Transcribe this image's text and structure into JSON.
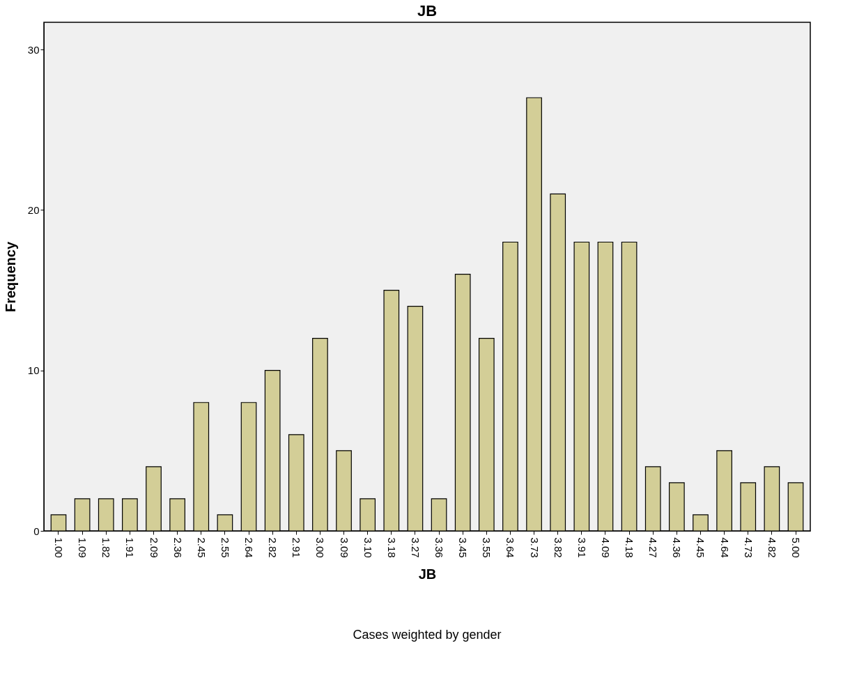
{
  "chart_data": {
    "type": "bar",
    "title": "JB",
    "xlabel": "JB",
    "ylabel": "Frequency",
    "categories": [
      "1.00",
      "1.09",
      "1.82",
      "1.91",
      "2.09",
      "2.36",
      "2.45",
      "2.55",
      "2.64",
      "2.82",
      "2.91",
      "3.00",
      "3.09",
      "3.10",
      "3.18",
      "3.27",
      "3.36",
      "3.45",
      "3.55",
      "3.64",
      "3.73",
      "3.82",
      "3.91",
      "4.09",
      "4.18",
      "4.27",
      "4.36",
      "4.45",
      "4.64",
      "4.73",
      "4.82",
      "5.00"
    ],
    "values": [
      1,
      2,
      2,
      2,
      4,
      2,
      8,
      1,
      8,
      10,
      6,
      12,
      5,
      2,
      15,
      14,
      2,
      16,
      12,
      18,
      27,
      21,
      18,
      18,
      18,
      4,
      3,
      1,
      5,
      3,
      4,
      3
    ],
    "color": "#d3ce97",
    "ylim": [
      0,
      31.7
    ],
    "yticks": [
      0,
      10,
      20,
      30
    ],
    "grid": false,
    "annotations": [
      "Cases weighted by gender"
    ]
  }
}
